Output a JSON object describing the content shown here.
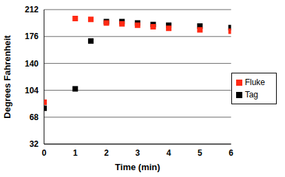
{
  "chart_data": {
    "type": "scatter",
    "x_label": "Time (min)",
    "y_label": "Degrees Fahrenheit",
    "x": [
      0,
      1,
      1.5,
      2,
      2.5,
      3,
      3.5,
      4,
      5,
      6
    ],
    "xlim": [
      0,
      6
    ],
    "xticks": [
      0,
      1,
      2,
      3,
      4,
      5,
      6
    ],
    "ylim": [
      32,
      212
    ],
    "yticks": [
      32,
      68,
      104,
      140,
      176,
      212
    ],
    "grid": true,
    "legend": "right",
    "series": [
      {
        "name": "Tag",
        "color": "#000000",
        "marker": "square",
        "values": [
          80,
          106,
          170,
          196,
          196,
          194,
          192,
          191,
          190,
          188
        ]
      },
      {
        "name": "Fluke",
        "color": "#ff2a14",
        "marker": "square",
        "values": [
          88,
          200,
          199,
          194,
          193,
          191,
          189,
          187,
          185,
          183
        ]
      }
    ]
  }
}
